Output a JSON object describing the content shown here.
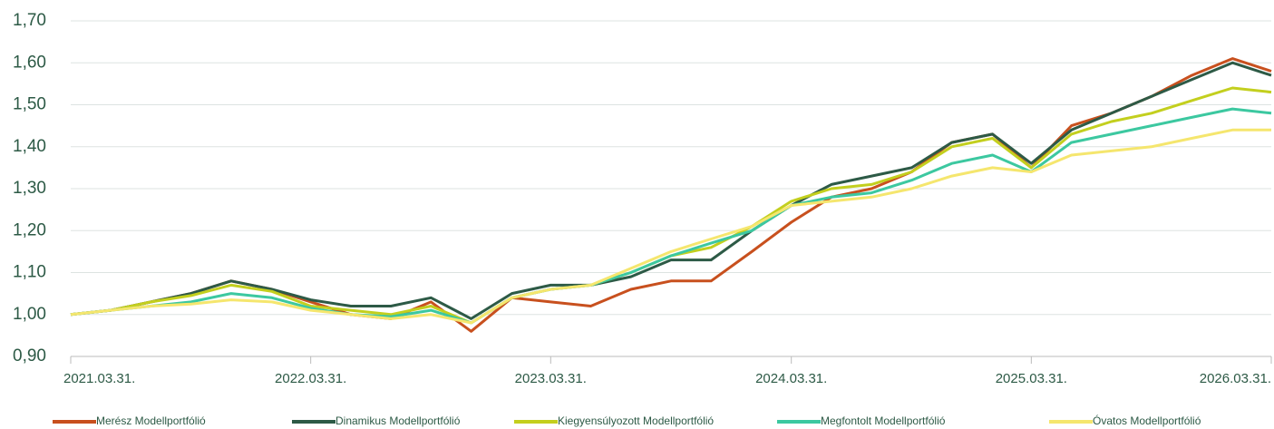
{
  "chart_data": {
    "type": "line",
    "x": [
      "2021-03-31",
      "2021-05-31",
      "2021-07-31",
      "2021-09-30",
      "2021-11-30",
      "2022-01-31",
      "2022-03-31",
      "2022-05-31",
      "2022-07-31",
      "2022-09-30",
      "2022-11-30",
      "2023-01-31",
      "2023-03-31",
      "2023-05-31",
      "2023-07-31",
      "2023-09-30",
      "2023-11-30",
      "2024-01-31",
      "2024-03-31",
      "2024-05-31",
      "2024-07-31",
      "2024-09-30",
      "2024-11-30",
      "2025-01-31",
      "2025-03-31",
      "2025-05-31",
      "2025-07-31",
      "2025-09-30",
      "2025-11-30",
      "2026-01-31",
      "2026-03-31"
    ],
    "series": [
      {
        "name": "Merész Modellportfólió",
        "color": "#c8501e",
        "values": [
          1.0,
          1.01,
          1.03,
          1.05,
          1.08,
          1.06,
          1.03,
          1.0,
          0.99,
          1.03,
          0.96,
          1.04,
          1.03,
          1.02,
          1.06,
          1.08,
          1.08,
          1.15,
          1.22,
          1.28,
          1.3,
          1.34,
          1.41,
          1.43,
          1.35,
          1.45,
          1.48,
          1.52,
          1.57,
          1.61,
          1.58
        ]
      },
      {
        "name": "Dinamikus Modellportfólió",
        "color": "#2d5a46",
        "values": [
          1.0,
          1.01,
          1.03,
          1.05,
          1.08,
          1.06,
          1.035,
          1.02,
          1.02,
          1.04,
          0.99,
          1.05,
          1.07,
          1.07,
          1.09,
          1.13,
          1.13,
          1.2,
          1.26,
          1.31,
          1.33,
          1.35,
          1.41,
          1.43,
          1.36,
          1.44,
          1.48,
          1.52,
          1.56,
          1.6,
          1.57
        ]
      },
      {
        "name": "Kiegyensúlyozott Modellportfólió",
        "color": "#c3cf1e",
        "values": [
          1.0,
          1.01,
          1.03,
          1.045,
          1.07,
          1.055,
          1.02,
          1.01,
          1.0,
          1.02,
          0.98,
          1.04,
          1.06,
          1.07,
          1.1,
          1.14,
          1.16,
          1.21,
          1.27,
          1.3,
          1.31,
          1.34,
          1.4,
          1.42,
          1.35,
          1.43,
          1.46,
          1.48,
          1.51,
          1.54,
          1.53
        ]
      },
      {
        "name": "Megfontolt Modellportfólió",
        "color": "#3cc8a0",
        "values": [
          1.0,
          1.01,
          1.02,
          1.03,
          1.05,
          1.04,
          1.015,
          1.0,
          0.995,
          1.01,
          0.98,
          1.04,
          1.06,
          1.07,
          1.1,
          1.14,
          1.17,
          1.2,
          1.26,
          1.28,
          1.29,
          1.32,
          1.36,
          1.38,
          1.34,
          1.41,
          1.43,
          1.45,
          1.47,
          1.49,
          1.48
        ]
      },
      {
        "name": "Óvatos Modellportfólió",
        "color": "#f5e66e",
        "values": [
          1.0,
          1.01,
          1.02,
          1.025,
          1.035,
          1.03,
          1.01,
          1.0,
          0.99,
          1.0,
          0.98,
          1.04,
          1.06,
          1.07,
          1.11,
          1.15,
          1.18,
          1.21,
          1.26,
          1.27,
          1.28,
          1.3,
          1.33,
          1.35,
          1.34,
          1.38,
          1.39,
          1.4,
          1.42,
          1.44,
          1.44
        ]
      }
    ],
    "xlim": [
      "2021-03-31",
      "2026-03-31"
    ],
    "xticks": [
      {
        "value": "2021-03-31",
        "label": "2021.03.31."
      },
      {
        "value": "2022-03-31",
        "label": "2022.03.31."
      },
      {
        "value": "2023-03-31",
        "label": "2023.03.31."
      },
      {
        "value": "2024-03-31",
        "label": "2024.03.31."
      },
      {
        "value": "2025-03-31",
        "label": "2025.03.31."
      },
      {
        "value": "2026-03-31",
        "label": "2026.03.31."
      }
    ],
    "ylim": [
      0.9,
      1.7
    ],
    "yticks": [
      {
        "value": 0.9,
        "label": "0,90"
      },
      {
        "value": 1.0,
        "label": "1,00"
      },
      {
        "value": 1.1,
        "label": "1,10"
      },
      {
        "value": 1.2,
        "label": "1,20"
      },
      {
        "value": 1.3,
        "label": "1,30"
      },
      {
        "value": 1.4,
        "label": "1,40"
      },
      {
        "value": 1.5,
        "label": "1,50"
      },
      {
        "value": 1.6,
        "label": "1,60"
      },
      {
        "value": 1.7,
        "label": "1,70"
      }
    ],
    "grid": true,
    "legend": "bottom"
  }
}
